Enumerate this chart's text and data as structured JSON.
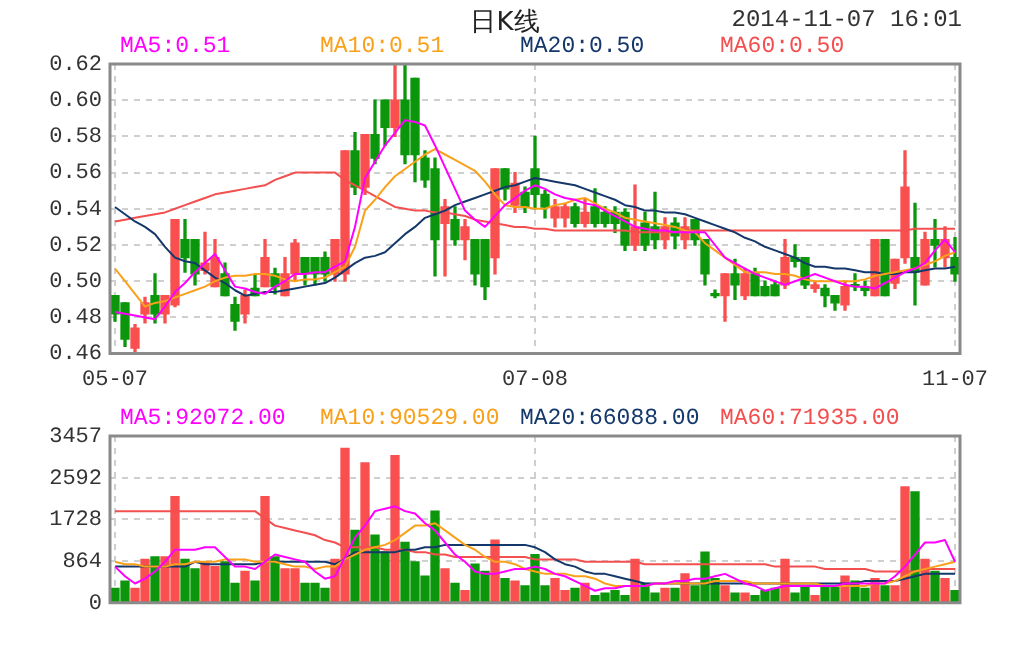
{
  "chart_data": [
    {
      "type": "candlestick",
      "title": "日K线",
      "subtitle": "2014-11-07 16:01",
      "categories": [
        "05-07",
        null,
        null,
        null,
        null,
        null,
        null,
        null,
        null,
        null,
        null,
        null,
        null,
        null,
        null,
        null,
        null,
        null,
        null,
        null,
        null,
        null,
        null,
        null,
        null,
        null,
        null,
        null,
        null,
        null,
        null,
        null,
        null,
        null,
        null,
        null,
        null,
        null,
        null,
        null,
        null,
        null,
        "07-08",
        null,
        null,
        null,
        null,
        null,
        null,
        null,
        null,
        null,
        null,
        null,
        null,
        null,
        null,
        null,
        null,
        null,
        null,
        null,
        null,
        null,
        null,
        null,
        null,
        null,
        null,
        null,
        null,
        null,
        null,
        null,
        null,
        null,
        null,
        null,
        null,
        null,
        null,
        null,
        null,
        null,
        "11-07"
      ],
      "ohlc": [
        [
          0.492,
          0.492,
          0.478,
          0.482
        ],
        [
          0.488,
          0.488,
          0.464,
          0.468
        ],
        [
          0.463,
          0.476,
          0.459,
          0.474
        ],
        [
          0.482,
          0.491,
          0.477,
          0.488
        ],
        [
          0.492,
          0.504,
          0.477,
          0.482
        ],
        [
          0.482,
          0.492,
          0.477,
          0.492
        ],
        [
          0.487,
          0.534,
          0.486,
          0.534
        ],
        [
          0.523,
          0.534,
          0.505,
          0.513
        ],
        [
          0.523,
          0.523,
          0.498,
          0.504
        ],
        [
          0.506,
          0.527,
          0.504,
          0.51
        ],
        [
          0.497,
          0.523,
          0.497,
          0.513
        ],
        [
          0.504,
          0.51,
          0.492,
          0.492
        ],
        [
          0.487,
          0.491,
          0.473,
          0.478
        ],
        [
          0.482,
          0.495,
          0.477,
          0.492
        ],
        [
          0.496,
          0.503,
          0.492,
          0.492
        ],
        [
          0.497,
          0.523,
          0.497,
          0.513
        ],
        [
          0.504,
          0.507,
          0.493,
          0.497
        ],
        [
          0.492,
          0.513,
          0.492,
          0.504
        ],
        [
          0.504,
          0.523,
          0.5,
          0.521
        ],
        [
          0.513,
          0.513,
          0.498,
          0.504
        ],
        [
          0.513,
          0.513,
          0.498,
          0.504
        ],
        [
          0.513,
          0.516,
          0.5,
          0.504
        ],
        [
          0.504,
          0.523,
          0.5,
          0.523
        ],
        [
          0.504,
          0.572,
          0.5,
          0.572
        ],
        [
          0.572,
          0.582,
          0.548,
          0.552
        ],
        [
          0.552,
          0.581,
          0.548,
          0.581
        ],
        [
          0.581,
          0.6,
          0.565,
          0.568
        ],
        [
          0.6,
          0.6,
          0.575,
          0.585
        ],
        [
          0.585,
          0.62,
          0.58,
          0.6
        ],
        [
          0.6,
          0.62,
          0.565,
          0.57
        ],
        [
          0.612,
          0.612,
          0.555,
          0.57
        ],
        [
          0.568,
          0.572,
          0.552,
          0.556
        ],
        [
          0.562,
          0.568,
          0.503,
          0.523
        ],
        [
          0.532,
          0.545,
          0.503,
          0.541
        ],
        [
          0.534,
          0.541,
          0.52,
          0.523
        ],
        [
          0.523,
          0.534,
          0.512,
          0.53
        ],
        [
          0.523,
          0.523,
          0.498,
          0.504
        ],
        [
          0.523,
          0.523,
          0.49,
          0.497
        ],
        [
          0.513,
          0.562,
          0.504,
          0.562
        ],
        [
          0.562,
          0.562,
          0.545,
          0.551
        ],
        [
          0.542,
          0.56,
          0.538,
          0.554
        ],
        [
          0.549,
          0.552,
          0.538,
          0.541
        ],
        [
          0.562,
          0.58,
          0.54,
          0.548
        ],
        [
          0.548,
          0.55,
          0.535,
          0.541
        ],
        [
          0.535,
          0.545,
          0.53,
          0.541
        ],
        [
          0.535,
          0.543,
          0.53,
          0.541
        ],
        [
          0.541,
          0.543,
          0.53,
          0.532
        ],
        [
          0.532,
          0.545,
          0.53,
          0.538
        ],
        [
          0.541,
          0.551,
          0.53,
          0.532
        ],
        [
          0.538,
          0.541,
          0.53,
          0.532
        ],
        [
          0.538,
          0.541,
          0.527,
          0.532
        ],
        [
          0.538,
          0.54,
          0.517,
          0.52
        ],
        [
          0.52,
          0.553,
          0.517,
          0.53
        ],
        [
          0.532,
          0.538,
          0.517,
          0.52
        ],
        [
          0.53,
          0.549,
          0.518,
          0.523
        ],
        [
          0.523,
          0.535,
          0.518,
          0.53
        ],
        [
          0.532,
          0.535,
          0.518,
          0.525
        ],
        [
          0.523,
          0.535,
          0.518,
          0.53
        ],
        [
          0.534,
          0.534,
          0.52,
          0.523
        ],
        [
          0.523,
          0.523,
          0.498,
          0.504
        ],
        [
          0.493,
          0.495,
          0.491,
          0.492
        ],
        [
          0.492,
          0.504,
          0.478,
          0.504
        ],
        [
          0.504,
          0.512,
          0.49,
          0.498
        ],
        [
          0.492,
          0.507,
          0.49,
          0.504
        ],
        [
          0.504,
          0.507,
          0.492,
          0.492
        ],
        [
          0.497,
          0.5,
          0.492,
          0.492
        ],
        [
          0.498,
          0.5,
          0.492,
          0.492
        ],
        [
          0.498,
          0.523,
          0.496,
          0.513
        ],
        [
          0.513,
          0.52,
          0.508,
          0.511
        ],
        [
          0.513,
          0.513,
          0.496,
          0.498
        ],
        [
          0.496,
          0.5,
          0.494,
          0.498
        ],
        [
          0.496,
          0.498,
          0.486,
          0.492
        ],
        [
          0.492,
          0.492,
          0.484,
          0.488
        ],
        [
          0.487,
          0.5,
          0.484,
          0.497
        ],
        [
          0.498,
          0.504,
          0.495,
          0.497
        ],
        [
          0.497,
          0.5,
          0.492,
          0.495
        ],
        [
          0.492,
          0.523,
          0.492,
          0.523
        ],
        [
          0.523,
          0.523,
          0.492,
          0.492
        ],
        [
          0.499,
          0.512,
          0.496,
          0.512
        ],
        [
          0.513,
          0.572,
          0.51,
          0.552
        ],
        [
          0.513,
          0.543,
          0.487,
          0.505
        ],
        [
          0.498,
          0.527,
          0.498,
          0.523
        ],
        [
          0.523,
          0.534,
          0.508,
          0.52
        ],
        [
          0.513,
          0.53,
          0.508,
          0.523
        ],
        [
          0.513,
          0.524,
          0.5,
          0.504
        ]
      ],
      "colors": [
        "#0b960b",
        "#0b960b",
        "#f94f4f",
        "#f94f4f",
        "#0b960b",
        "#f94f4f",
        "#f94f4f",
        "#0b960b",
        "#0b960b",
        "#f94f4f",
        "#f94f4f",
        "#0b960b",
        "#0b960b",
        "#f94f4f",
        "#0b960b",
        "#f94f4f",
        "#0b960b",
        "#f94f4f",
        "#f94f4f",
        "#0b960b",
        "#0b960b",
        "#0b960b",
        "#f94f4f",
        "#f94f4f",
        "#0b960b",
        "#f94f4f",
        "#0b960b",
        "#0b960b",
        "#f94f4f",
        "#0b960b",
        "#0b960b",
        "#0b960b",
        "#0b960b",
        "#f94f4f",
        "#0b960b",
        "#f94f4f",
        "#0b960b",
        "#0b960b",
        "#f94f4f",
        "#0b960b",
        "#f94f4f",
        "#0b960b",
        "#0b960b",
        "#0b960b",
        "#f94f4f",
        "#f94f4f",
        "#0b960b",
        "#f94f4f",
        "#0b960b",
        "#0b960b",
        "#0b960b",
        "#0b960b",
        "#f94f4f",
        "#0b960b",
        "#0b960b",
        "#f94f4f",
        "#0b960b",
        "#f94f4f",
        "#0b960b",
        "#0b960b",
        "#0b960b",
        "#f94f4f",
        "#0b960b",
        "#f94f4f",
        "#0b960b",
        "#0b960b",
        "#0b960b",
        "#f94f4f",
        "#0b960b",
        "#0b960b",
        "#f94f4f",
        "#0b960b",
        "#0b960b",
        "#f94f4f",
        "#0b960b",
        "#0b960b",
        "#f94f4f",
        "#0b960b",
        "#f94f4f",
        "#f94f4f",
        "#0b960b",
        "#f94f4f",
        "#0b960b",
        "#f94f4f",
        "#0b960b"
      ],
      "series": [
        {
          "type": "line",
          "name": "MA5:0.51",
          "color": "#ff00ff",
          "values": [
            0.483,
            0.482,
            0.481,
            0.48,
            0.479,
            0.486,
            0.494,
            0.499,
            0.505,
            0.51,
            0.515,
            0.506,
            0.497,
            0.496,
            0.494,
            0.493,
            0.497,
            0.5,
            0.504,
            0.504,
            0.505,
            0.505,
            0.508,
            0.511,
            0.53,
            0.557,
            0.566,
            0.575,
            0.582,
            0.589,
            0.588,
            0.586,
            0.575,
            0.563,
            0.551,
            0.539,
            0.534,
            0.53,
            0.536,
            0.542,
            0.546,
            0.55,
            0.553,
            0.551,
            0.548,
            0.546,
            0.545,
            0.543,
            0.542,
            0.539,
            0.536,
            0.533,
            0.53,
            0.529,
            0.528,
            0.528,
            0.527,
            0.527,
            0.527,
            0.527,
            0.52,
            0.513,
            0.51,
            0.507,
            0.504,
            0.502,
            0.5,
            0.498,
            0.5,
            0.502,
            0.504,
            0.502,
            0.5,
            0.498,
            0.497,
            0.497,
            0.496,
            0.499,
            0.502,
            0.505,
            0.507,
            0.51,
            0.517,
            0.523,
            0.516
          ]
        },
        {
          "type": "line",
          "name": "MA10:0.51",
          "color": "#f9a11b",
          "values": [
            0.507,
            0.5,
            0.493,
            0.486,
            0.488,
            0.489,
            0.491,
            0.493,
            0.495,
            0.497,
            0.5,
            0.502,
            0.503,
            0.503,
            0.504,
            0.504,
            0.503,
            0.501,
            0.5,
            0.501,
            0.501,
            0.502,
            0.505,
            0.508,
            0.519,
            0.539,
            0.545,
            0.552,
            0.558,
            0.562,
            0.566,
            0.57,
            0.573,
            0.57,
            0.567,
            0.564,
            0.561,
            0.555,
            0.548,
            0.542,
            0.541,
            0.541,
            0.54,
            0.54,
            0.542,
            0.543,
            0.545,
            0.546,
            0.543,
            0.54,
            0.538,
            0.535,
            0.534,
            0.533,
            0.532,
            0.531,
            0.53,
            0.528,
            0.527,
            0.521,
            0.517,
            0.513,
            0.509,
            0.505,
            0.505,
            0.505,
            0.504,
            0.504,
            0.503,
            0.501,
            0.5,
            0.5,
            0.5,
            0.5,
            0.5,
            0.501,
            0.503,
            0.504,
            0.505,
            0.506,
            0.507,
            0.509,
            0.511,
            0.514,
            0.516
          ]
        },
        {
          "type": "line",
          "name": "MA20:0.50",
          "color": "#15386b",
          "values": [
            0.541,
            0.537,
            0.533,
            0.53,
            0.526,
            0.519,
            0.513,
            0.511,
            0.51,
            0.506,
            0.502,
            0.499,
            0.495,
            0.492,
            0.493,
            0.494,
            0.494,
            0.495,
            0.496,
            0.497,
            0.498,
            0.499,
            0.502,
            0.506,
            0.51,
            0.513,
            0.514,
            0.516,
            0.521,
            0.526,
            0.53,
            0.535,
            0.537,
            0.539,
            0.542,
            0.544,
            0.546,
            0.548,
            0.55,
            0.552,
            0.553,
            0.555,
            0.557,
            0.556,
            0.555,
            0.554,
            0.553,
            0.551,
            0.549,
            0.547,
            0.545,
            0.542,
            0.541,
            0.539,
            0.539,
            0.538,
            0.538,
            0.537,
            0.535,
            0.533,
            0.531,
            0.529,
            0.527,
            0.524,
            0.522,
            0.519,
            0.517,
            0.515,
            0.513,
            0.51,
            0.508,
            0.508,
            0.507,
            0.507,
            0.506,
            0.505,
            0.505,
            0.504,
            0.504,
            0.505,
            0.505,
            0.506,
            0.507,
            0.507,
            0.508
          ]
        },
        {
          "type": "line",
          "name": "MA60:0.50",
          "color": "#f34f4f",
          "values": [
            0.533,
            0.534,
            0.535,
            0.536,
            0.537,
            0.538,
            0.54,
            0.542,
            0.544,
            0.546,
            0.548,
            0.549,
            0.55,
            0.551,
            0.552,
            0.553,
            0.556,
            0.558,
            0.56,
            0.56,
            0.56,
            0.56,
            0.56,
            0.556,
            0.553,
            0.55,
            0.547,
            0.544,
            0.541,
            0.54,
            0.539,
            0.539,
            0.538,
            0.538,
            0.537,
            0.536,
            0.534,
            0.533,
            0.532,
            0.531,
            0.53,
            0.53,
            0.529,
            0.529,
            0.528,
            0.528,
            0.528,
            0.528,
            0.528,
            0.528,
            0.528,
            0.528,
            0.527,
            0.527,
            0.527,
            0.527,
            0.527,
            0.528,
            0.528,
            0.528,
            0.528,
            0.528,
            0.528,
            0.528,
            0.528,
            0.528,
            0.528,
            0.528,
            0.528,
            0.528,
            0.528,
            0.528,
            0.528,
            0.528,
            0.528,
            0.528,
            0.528,
            0.528,
            0.528,
            0.528,
            0.529,
            0.529,
            0.529,
            0.529,
            0.529
          ]
        }
      ],
      "ylim": [
        0.46,
        0.62
      ],
      "yticks": [
        0.46,
        0.48,
        {
          "value": 0.5,
          "label": "0.50"
        },
        0.52,
        0.54,
        0.56,
        0.58,
        {
          "value": 0.6,
          "label": "0.60"
        },
        0.62
      ],
      "grid": true,
      "legend": "top",
      "marker": "none"
    },
    {
      "type": "bar",
      "tick_labels": "y",
      "series": [
        {
          "type": "bar",
          "colors": [
            "#0b960b",
            "#0b960b",
            "#f94f4f",
            "#f94f4f",
            "#0b960b",
            "#f94f4f",
            "#f94f4f",
            "#0b960b",
            "#0b960b",
            "#f94f4f",
            "#f94f4f",
            "#0b960b",
            "#0b960b",
            "#f94f4f",
            "#0b960b",
            "#f94f4f",
            "#0b960b",
            "#f94f4f",
            "#f94f4f",
            "#0b960b",
            "#0b960b",
            "#0b960b",
            "#f94f4f",
            "#f94f4f",
            "#0b960b",
            "#f94f4f",
            "#0b960b",
            "#0b960b",
            "#f94f4f",
            "#0b960b",
            "#0b960b",
            "#0b960b",
            "#0b960b",
            "#f94f4f",
            "#0b960b",
            "#f94f4f",
            "#0b960b",
            "#0b960b",
            "#f94f4f",
            "#0b960b",
            "#f94f4f",
            "#0b960b",
            "#0b960b",
            "#0b960b",
            "#f94f4f",
            "#f94f4f",
            "#0b960b",
            "#f94f4f",
            "#0b960b",
            "#0b960b",
            "#0b960b",
            "#0b960b",
            "#f94f4f",
            "#0b960b",
            "#0b960b",
            "#f94f4f",
            "#0b960b",
            "#f94f4f",
            "#0b960b",
            "#0b960b",
            "#0b960b",
            "#f94f4f",
            "#0b960b",
            "#f94f4f",
            "#0b960b",
            "#0b960b",
            "#0b960b",
            "#f94f4f",
            "#0b960b",
            "#0b960b",
            "#f94f4f",
            "#0b960b",
            "#0b960b",
            "#f94f4f",
            "#0b960b",
            "#0b960b",
            "#f94f4f",
            "#0b960b",
            "#f94f4f",
            "#f94f4f",
            "#0b960b",
            "#f94f4f",
            "#0b960b",
            "#f94f4f",
            "#0b960b"
          ],
          "values": [
            300,
            450,
            300,
            900,
            950,
            950,
            2200,
            900,
            700,
            850,
            750,
            850,
            400,
            650,
            450,
            2200,
            950,
            700,
            700,
            400,
            400,
            300,
            900,
            3200,
            1500,
            2900,
            1400,
            1050,
            3050,
            1250,
            850,
            550,
            1900,
            700,
            400,
            250,
            800,
            650,
            1300,
            500,
            450,
            350,
            1000,
            350,
            500,
            250,
            300,
            400,
            150,
            200,
            250,
            150,
            900,
            400,
            200,
            300,
            300,
            600,
            350,
            1050,
            500,
            350,
            200,
            200,
            150,
            250,
            300,
            900,
            200,
            350,
            150,
            350,
            350,
            550,
            450,
            300,
            500,
            350,
            350,
            2400,
            2300,
            900,
            650,
            500,
            250
          ]
        },
        {
          "type": "line",
          "name": "MA5:92072.00",
          "color": "#ff00ff",
          "values": [
            750,
            550,
            400,
            500,
            650,
            850,
            1100,
            1100,
            1100,
            1150,
            1150,
            950,
            750,
            750,
            700,
            850,
            1000,
            950,
            900,
            850,
            650,
            500,
            550,
            950,
            1350,
            1600,
            1900,
            1950,
            2000,
            1900,
            1850,
            1650,
            1500,
            1250,
            1000,
            850,
            650,
            600,
            600,
            650,
            700,
            700,
            750,
            700,
            600,
            550,
            450,
            350,
            250,
            300,
            300,
            350,
            350,
            350,
            400,
            400,
            450,
            450,
            500,
            500,
            550,
            600,
            500,
            400,
            350,
            250,
            300,
            350,
            350,
            350,
            350,
            350,
            350,
            400,
            400,
            400,
            400,
            400,
            550,
            750,
            1000,
            1250,
            1250,
            1300,
            850
          ]
        },
        {
          "type": "line",
          "name": "MA10:90529.00",
          "color": "#f9a11b",
          "values": [
            850,
            800,
            800,
            750,
            750,
            750,
            800,
            800,
            850,
            850,
            850,
            900,
            900,
            900,
            850,
            850,
            850,
            800,
            750,
            750,
            700,
            750,
            750,
            900,
            1000,
            1100,
            1150,
            1200,
            1300,
            1450,
            1600,
            1600,
            1650,
            1500,
            1350,
            1200,
            1100,
            950,
            850,
            850,
            800,
            700,
            650,
            600,
            600,
            600,
            550,
            550,
            500,
            400,
            350,
            350,
            350,
            350,
            400,
            400,
            400,
            400,
            400,
            400,
            450,
            450,
            450,
            450,
            400,
            400,
            400,
            400,
            400,
            400,
            400,
            350,
            350,
            350,
            350,
            350,
            400,
            400,
            450,
            550,
            650,
            700,
            750,
            800,
            850
          ]
        },
        {
          "type": "line",
          "name": "MA20:66088.00",
          "color": "#15386b",
          "values": [
            750,
            750,
            750,
            750,
            750,
            750,
            750,
            750,
            850,
            800,
            800,
            800,
            800,
            800,
            800,
            850,
            850,
            850,
            850,
            850,
            850,
            850,
            800,
            900,
            1050,
            1050,
            1050,
            1050,
            1050,
            1100,
            1100,
            1150,
            1150,
            1200,
            1200,
            1200,
            1200,
            1200,
            1200,
            1200,
            1200,
            1200,
            1150,
            1050,
            900,
            800,
            750,
            650,
            600,
            600,
            550,
            500,
            450,
            400,
            400,
            400,
            400,
            400,
            400,
            400,
            400,
            400,
            400,
            400,
            400,
            400,
            400,
            400,
            400,
            400,
            400,
            400,
            400,
            400,
            400,
            450,
            450,
            450,
            450,
            500,
            550,
            600,
            600,
            600,
            600
          ]
        },
        {
          "type": "line",
          "name": "MA60:71935.00",
          "color": "#f34f4f",
          "values": [
            1900,
            1900,
            1900,
            1900,
            1900,
            1900,
            1900,
            1900,
            1900,
            1900,
            1900,
            1900,
            1900,
            1900,
            1900,
            1750,
            1600,
            1550,
            1500,
            1450,
            1400,
            1300,
            1250,
            1150,
            1150,
            1150,
            1150,
            1100,
            1100,
            1100,
            1050,
            1050,
            1000,
            1000,
            950,
            950,
            950,
            950,
            950,
            950,
            950,
            950,
            900,
            900,
            900,
            900,
            900,
            850,
            850,
            850,
            850,
            850,
            850,
            800,
            800,
            800,
            800,
            800,
            800,
            800,
            800,
            800,
            800,
            800,
            800,
            800,
            750,
            750,
            750,
            750,
            750,
            700,
            700,
            700,
            700,
            700,
            650,
            650,
            650,
            650,
            650,
            700,
            700,
            700,
            700
          ]
        }
      ],
      "ylim": [
        0,
        3457
      ],
      "yticks": [
        0,
        864,
        1728,
        2592,
        3457
      ],
      "grid": true,
      "legend": "top",
      "marker": "none"
    }
  ]
}
